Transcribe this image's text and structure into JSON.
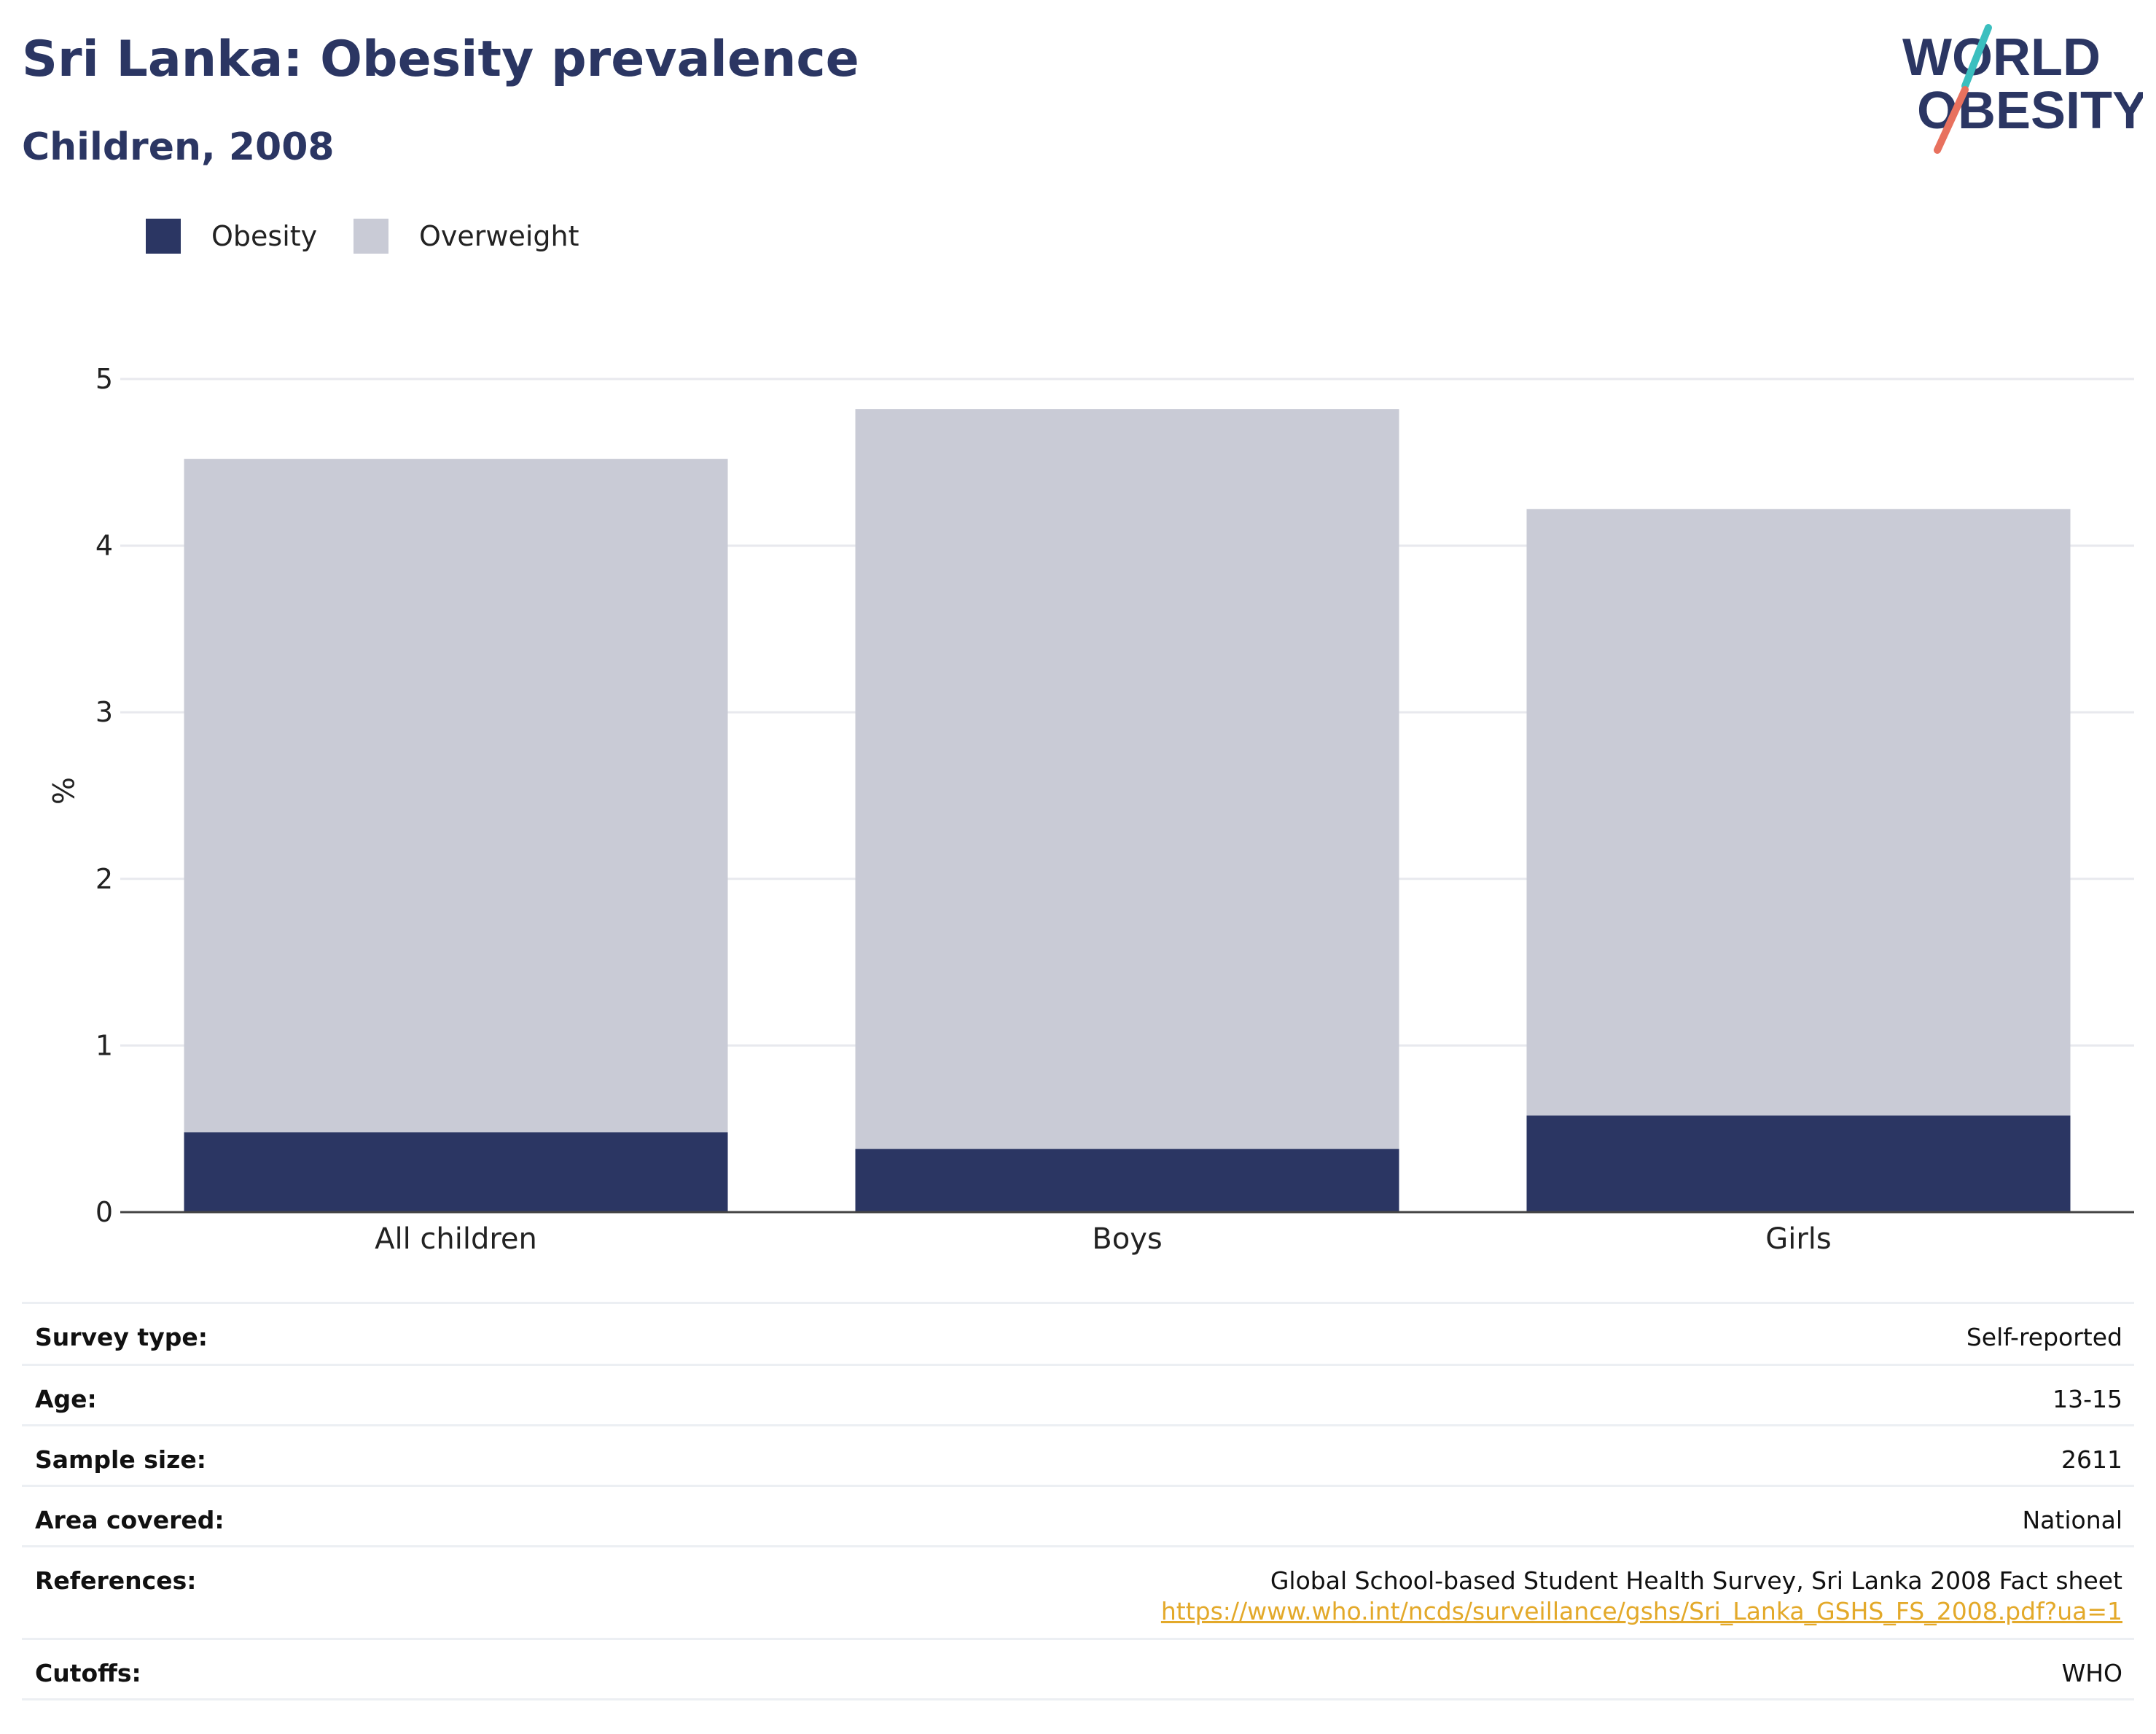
{
  "header": {
    "title": "Sri Lanka: Obesity prevalence",
    "subtitle": "Children, 2008"
  },
  "logo": {
    "line1": "WORLD",
    "line2": "OBESITY",
    "colors": {
      "text": "#2b3663",
      "accent_teal": "#3bbfbf",
      "accent_coral": "#e8715e"
    }
  },
  "legend": [
    {
      "label": "Obesity",
      "color": "#2b3663"
    },
    {
      "label": "Overweight",
      "color": "#c9cbd6"
    }
  ],
  "chart_data": {
    "type": "bar",
    "stacked": true,
    "categories": [
      "All children",
      "Boys",
      "Girls"
    ],
    "series": [
      {
        "name": "Obesity",
        "color": "#2b3663",
        "values": [
          0.48,
          0.38,
          0.58
        ]
      },
      {
        "name": "Overweight",
        "color": "#c9cbd6",
        "values": [
          4.04,
          4.44,
          3.64
        ]
      }
    ],
    "title": "",
    "xlabel": "",
    "ylabel": "%",
    "ylim": [
      0,
      5
    ],
    "yticks": [
      0,
      1,
      2,
      3,
      4,
      5
    ],
    "grid": true,
    "legend_position": "top-left"
  },
  "info": {
    "survey_type": {
      "label": "Survey type:",
      "value": "Self-reported"
    },
    "age": {
      "label": "Age:",
      "value": "13-15"
    },
    "sample_size": {
      "label": "Sample size:",
      "value": "2611"
    },
    "area_covered": {
      "label": "Area covered:",
      "value": "National"
    },
    "references": {
      "label": "References:",
      "value": "Global School-based Student Health Survey, Sri Lanka 2008 Fact sheet",
      "link": "https://www.who.int/ncds/surveillance/gshs/Sri_Lanka_GSHS_FS_2008.pdf?ua=1"
    },
    "cutoffs": {
      "label": "Cutoffs:",
      "value": "WHO"
    }
  }
}
